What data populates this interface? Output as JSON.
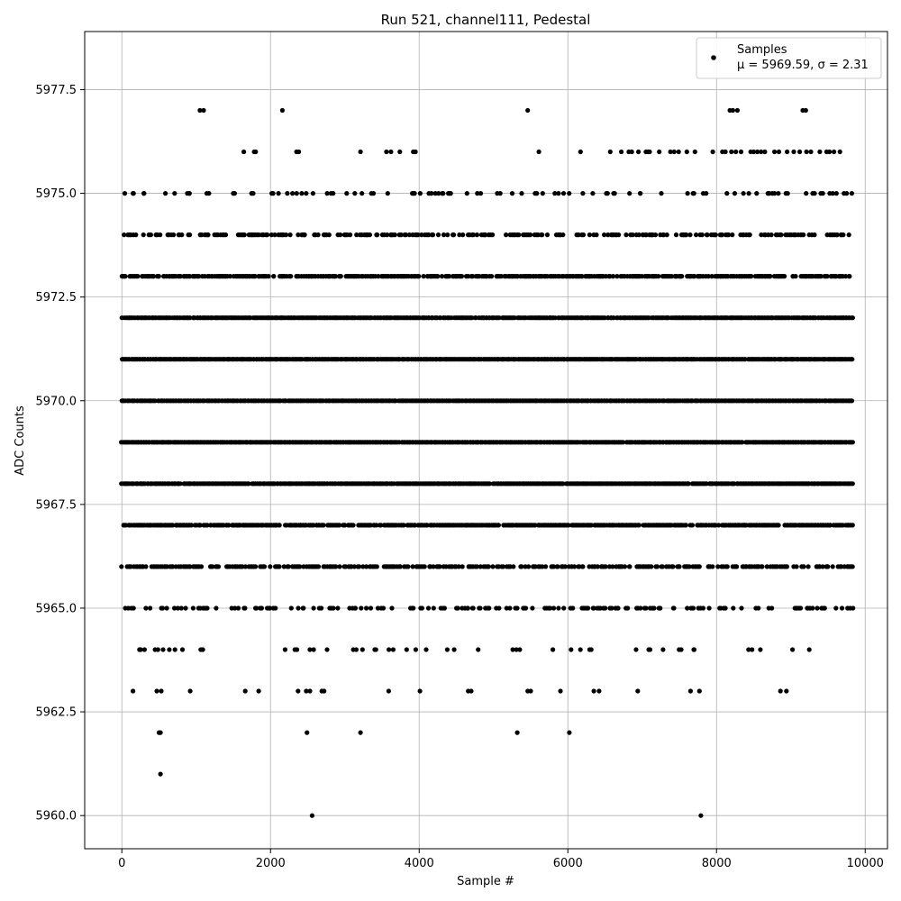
{
  "chart_data": {
    "type": "scatter",
    "title": "Run 521, channel111, Pedestal",
    "xlabel": "Sample #",
    "ylabel": "ADC Counts",
    "xlim": [
      -500,
      10300
    ],
    "ylim": [
      5959.2,
      5978.9
    ],
    "xticks": [
      0,
      2000,
      4000,
      6000,
      8000,
      10000
    ],
    "xtick_labels": [
      "0",
      "2000",
      "4000",
      "6000",
      "8000",
      "10000"
    ],
    "yticks": [
      5960.0,
      5962.5,
      5965.0,
      5967.5,
      5970.0,
      5972.5,
      5975.0,
      5977.5
    ],
    "ytick_labels": [
      "5960.0",
      "5962.5",
      "5965.0",
      "5967.5",
      "5970.0",
      "5972.5",
      "5975.0",
      "5977.5"
    ],
    "grid": true,
    "legend": {
      "position": "top-right",
      "series_name": "Samples",
      "stats_text": "μ = 5969.59, σ = 2.31"
    },
    "colors": {
      "points": "#000000",
      "grid": "#b0b0b0"
    },
    "series": [
      {
        "name": "Samples",
        "points_note": "approximately 9850 samples, x from 0 to ~9840, integer ADC values",
        "rare_points": [
          [
            520,
            5961
          ],
          [
            2560,
            5960
          ],
          [
            7790,
            5960
          ],
          [
            500,
            5962
          ],
          [
            520,
            5962
          ],
          [
            2490,
            5962
          ],
          [
            3210,
            5962
          ],
          [
            5320,
            5962
          ],
          [
            6020,
            5962
          ],
          [
            1050,
            5977
          ],
          [
            1100,
            5977
          ],
          [
            2160,
            5977
          ],
          [
            5460,
            5977
          ],
          [
            8180,
            5977
          ],
          [
            8220,
            5977
          ],
          [
            8280,
            5977
          ],
          [
            9160,
            5977
          ],
          [
            9200,
            5977
          ],
          [
            150,
            5963
          ],
          [
            470,
            5963
          ],
          [
            530,
            5963
          ],
          [
            920,
            5963
          ],
          [
            1660,
            5963
          ],
          [
            1840,
            5963
          ],
          [
            2370,
            5963
          ],
          [
            2480,
            5963
          ],
          [
            2530,
            5963
          ],
          [
            2690,
            5963
          ],
          [
            2720,
            5963
          ],
          [
            3590,
            5963
          ],
          [
            4010,
            5963
          ],
          [
            4660,
            5963
          ],
          [
            4700,
            5963
          ],
          [
            5460,
            5963
          ],
          [
            5500,
            5963
          ],
          [
            5900,
            5963
          ],
          [
            6350,
            5963
          ],
          [
            6420,
            5963
          ],
          [
            6940,
            5963
          ],
          [
            7650,
            5963
          ],
          [
            7770,
            5963
          ],
          [
            8860,
            5963
          ],
          [
            8940,
            5963
          ],
          [
            1640,
            5976
          ],
          [
            1780,
            5976
          ],
          [
            1800,
            5976
          ],
          [
            2350,
            5976
          ],
          [
            2380,
            5976
          ],
          [
            3210,
            5976
          ],
          [
            3560,
            5976
          ],
          [
            3620,
            5976
          ],
          [
            3740,
            5976
          ],
          [
            3920,
            5976
          ],
          [
            3950,
            5976
          ],
          [
            5610,
            5976
          ],
          [
            6170,
            5976
          ],
          [
            6570,
            5976
          ],
          [
            6720,
            5976
          ],
          [
            6820,
            5976
          ],
          [
            6860,
            5976
          ],
          [
            6950,
            5976
          ],
          [
            7050,
            5976
          ],
          [
            7080,
            5976
          ],
          [
            7100,
            5976
          ],
          [
            7230,
            5976
          ],
          [
            7380,
            5976
          ],
          [
            7430,
            5976
          ],
          [
            7490,
            5976
          ],
          [
            7600,
            5976
          ],
          [
            7710,
            5976
          ],
          [
            7950,
            5976
          ],
          [
            8080,
            5976
          ],
          [
            8120,
            5976
          ],
          [
            8200,
            5976
          ],
          [
            8260,
            5976
          ],
          [
            8330,
            5976
          ],
          [
            8460,
            5976
          ],
          [
            8500,
            5976
          ],
          [
            8550,
            5976
          ],
          [
            8600,
            5976
          ],
          [
            8650,
            5976
          ],
          [
            8780,
            5976
          ],
          [
            8840,
            5976
          ],
          [
            8950,
            5976
          ],
          [
            9040,
            5976
          ],
          [
            9120,
            5976
          ],
          [
            9210,
            5976
          ],
          [
            9270,
            5976
          ],
          [
            9390,
            5976
          ],
          [
            9480,
            5976
          ],
          [
            9520,
            5976
          ],
          [
            9580,
            5976
          ],
          [
            9660,
            5976
          ]
        ]
      }
    ]
  }
}
